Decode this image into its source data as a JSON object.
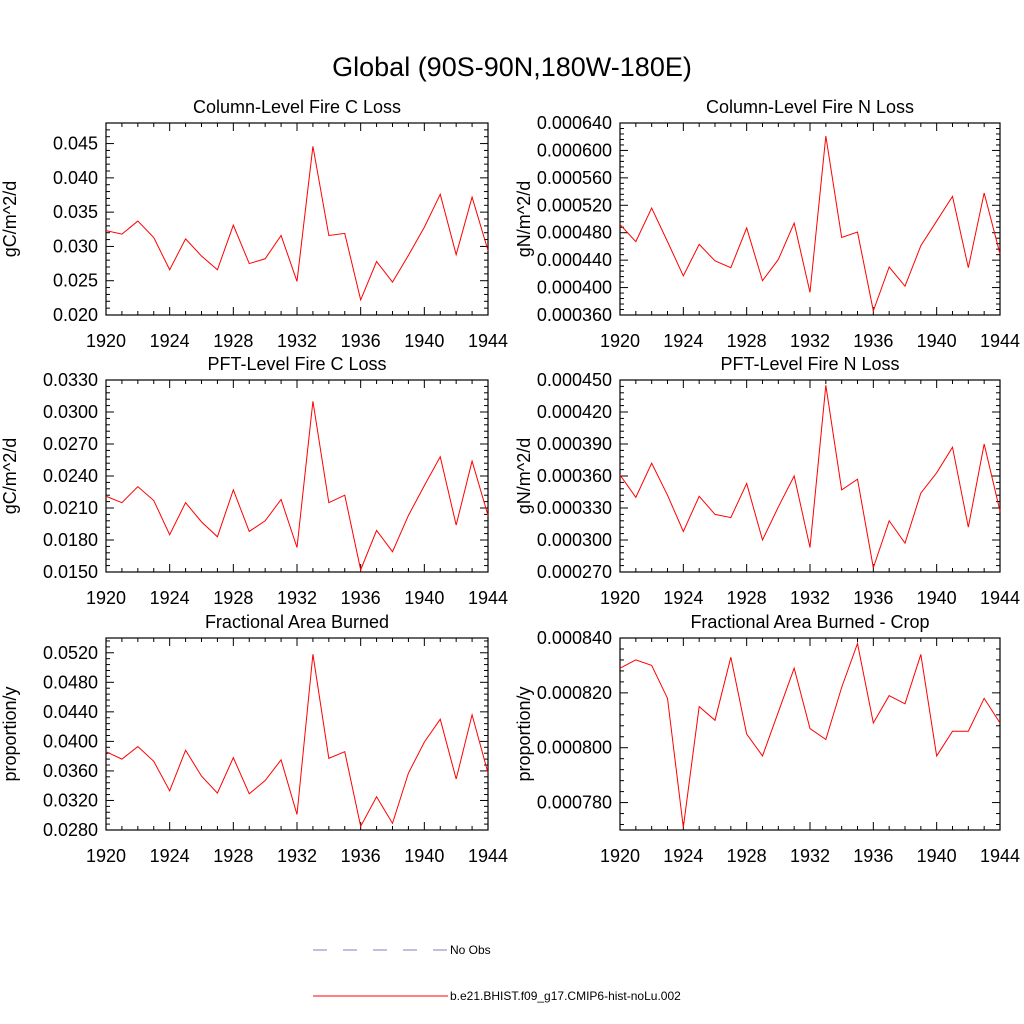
{
  "figure": {
    "title": "Global (90S-90N,180W-180E)",
    "colors": {
      "model": "#ff0000",
      "obs": "#7f7fbf",
      "axis": "#000000"
    }
  },
  "legend": {
    "items": [
      {
        "label": "No Obs",
        "style": "dashed",
        "color": "#7f7fbf"
      },
      {
        "label": "b.e21.BHIST.f09_g17.CMIP6-hist-noLu.002",
        "style": "solid",
        "color": "#ff0000"
      }
    ]
  },
  "chart_data": [
    {
      "type": "line",
      "title": "Column-Level Fire C Loss",
      "ylabel": "gC/m^2/d",
      "xlim": [
        1920,
        1944
      ],
      "ylim": [
        0.02,
        0.048
      ],
      "xticks": [
        "1920",
        "1924",
        "1928",
        "1932",
        "1936",
        "1940",
        "1944"
      ],
      "yticks": [
        "0.020",
        "0.025",
        "0.030",
        "0.035",
        "0.040",
        "0.045"
      ],
      "ytick_values": [
        0.02,
        0.025,
        0.03,
        0.035,
        0.04,
        0.045
      ],
      "x": [
        1920,
        1921,
        1922,
        1923,
        1924,
        1925,
        1926,
        1927,
        1928,
        1929,
        1930,
        1931,
        1932,
        1933,
        1934,
        1935,
        1936,
        1937,
        1938,
        1939,
        1940,
        1941,
        1942,
        1943,
        1944
      ],
      "series": [
        {
          "values": [
            0.0323,
            0.0318,
            0.0337,
            0.0313,
            0.0266,
            0.0311,
            0.0286,
            0.0266,
            0.0331,
            0.0275,
            0.0282,
            0.0316,
            0.0249,
            0.0446,
            0.0316,
            0.0319,
            0.0222,
            0.0278,
            0.0248,
            0.0287,
            0.0328,
            0.0376,
            0.0288,
            0.0372,
            0.0294
          ]
        }
      ]
    },
    {
      "type": "line",
      "title": "Column-Level Fire N Loss",
      "ylabel": "gN/m^2/d",
      "xlim": [
        1920,
        1944
      ],
      "ylim": [
        0.00036,
        0.00064
      ],
      "xticks": [
        "1920",
        "1924",
        "1928",
        "1932",
        "1936",
        "1940",
        "1944"
      ],
      "yticks": [
        "0.000360",
        "0.000400",
        "0.000440",
        "0.000480",
        "0.000520",
        "0.000560",
        "0.000600",
        "0.000640"
      ],
      "ytick_values": [
        0.00036,
        0.0004,
        0.00044,
        0.00048,
        0.00052,
        0.00056,
        0.0006,
        0.00064
      ],
      "x": [
        1920,
        1921,
        1922,
        1923,
        1924,
        1925,
        1926,
        1927,
        1928,
        1929,
        1930,
        1931,
        1932,
        1933,
        1934,
        1935,
        1936,
        1937,
        1938,
        1939,
        1940,
        1941,
        1942,
        1943,
        1944
      ],
      "series": [
        {
          "values": [
            0.000492,
            0.000467,
            0.000516,
            0.000467,
            0.000417,
            0.000463,
            0.000439,
            0.000429,
            0.000487,
            0.00041,
            0.000441,
            0.000494,
            0.000393,
            0.000621,
            0.000473,
            0.000481,
            0.000366,
            0.00043,
            0.000402,
            0.000461,
            0.000497,
            0.000533,
            0.000429,
            0.000538,
            0.000449
          ]
        }
      ]
    },
    {
      "type": "line",
      "title": "PFT-Level Fire C Loss",
      "ylabel": "gC/m^2/d",
      "xlim": [
        1920,
        1944
      ],
      "ylim": [
        0.015,
        0.033
      ],
      "xticks": [
        "1920",
        "1924",
        "1928",
        "1932",
        "1936",
        "1940",
        "1944"
      ],
      "yticks": [
        "0.0150",
        "0.0180",
        "0.0210",
        "0.0240",
        "0.0270",
        "0.0300",
        "0.0330"
      ],
      "ytick_values": [
        0.015,
        0.018,
        0.021,
        0.024,
        0.027,
        0.03,
        0.033
      ],
      "x": [
        1920,
        1921,
        1922,
        1923,
        1924,
        1925,
        1926,
        1927,
        1928,
        1929,
        1930,
        1931,
        1932,
        1933,
        1934,
        1935,
        1936,
        1937,
        1938,
        1939,
        1940,
        1941,
        1942,
        1943,
        1944
      ],
      "series": [
        {
          "values": [
            0.0221,
            0.0215,
            0.023,
            0.0217,
            0.0185,
            0.0215,
            0.0197,
            0.0183,
            0.0227,
            0.0188,
            0.0198,
            0.0218,
            0.0173,
            0.031,
            0.0215,
            0.0222,
            0.0152,
            0.0189,
            0.0169,
            0.0203,
            0.0231,
            0.0258,
            0.0194,
            0.0254,
            0.0203
          ]
        }
      ]
    },
    {
      "type": "line",
      "title": "PFT-Level Fire N Loss",
      "ylabel": "gN/m^2/d",
      "xlim": [
        1920,
        1944
      ],
      "ylim": [
        0.00027,
        0.00045
      ],
      "xticks": [
        "1920",
        "1924",
        "1928",
        "1932",
        "1936",
        "1940",
        "1944"
      ],
      "yticks": [
        "0.000270",
        "0.000300",
        "0.000330",
        "0.000360",
        "0.000390",
        "0.000420",
        "0.000450"
      ],
      "ytick_values": [
        0.00027,
        0.0003,
        0.00033,
        0.00036,
        0.00039,
        0.00042,
        0.00045
      ],
      "x": [
        1920,
        1921,
        1922,
        1923,
        1924,
        1925,
        1926,
        1927,
        1928,
        1929,
        1930,
        1931,
        1932,
        1933,
        1934,
        1935,
        1936,
        1937,
        1938,
        1939,
        1940,
        1941,
        1942,
        1943,
        1944
      ],
      "series": [
        {
          "values": [
            0.000361,
            0.00034,
            0.000372,
            0.000342,
            0.000308,
            0.000341,
            0.000324,
            0.000321,
            0.000353,
            0.0003,
            0.000331,
            0.00036,
            0.000293,
            0.000445,
            0.000347,
            0.000357,
            0.000274,
            0.000318,
            0.000297,
            0.000344,
            0.000363,
            0.000387,
            0.000312,
            0.00039,
            0.000327
          ]
        }
      ]
    },
    {
      "type": "line",
      "title": "Fractional Area Burned",
      "ylabel": "proportion/y",
      "xlim": [
        1920,
        1944
      ],
      "ylim": [
        0.028,
        0.054
      ],
      "xticks": [
        "1920",
        "1924",
        "1928",
        "1932",
        "1936",
        "1940",
        "1944"
      ],
      "yticks": [
        "0.0280",
        "0.0320",
        "0.0360",
        "0.0400",
        "0.0440",
        "0.0480",
        "0.0520"
      ],
      "ytick_values": [
        0.028,
        0.032,
        0.036,
        0.04,
        0.044,
        0.048,
        0.052
      ],
      "x": [
        1920,
        1921,
        1922,
        1923,
        1924,
        1925,
        1926,
        1927,
        1928,
        1929,
        1930,
        1931,
        1932,
        1933,
        1934,
        1935,
        1936,
        1937,
        1938,
        1939,
        1940,
        1941,
        1942,
        1943,
        1944
      ],
      "series": [
        {
          "values": [
            0.0386,
            0.0376,
            0.0393,
            0.0373,
            0.0333,
            0.0388,
            0.0353,
            0.033,
            0.0378,
            0.0329,
            0.0347,
            0.0375,
            0.0301,
            0.0518,
            0.0377,
            0.0386,
            0.0285,
            0.0325,
            0.0289,
            0.0357,
            0.0399,
            0.043,
            0.0349,
            0.0436,
            0.0357
          ]
        }
      ]
    },
    {
      "type": "line",
      "title": "Fractional Area Burned - Crop",
      "ylabel": "proportion/y",
      "xlim": [
        1920,
        1944
      ],
      "ylim": [
        0.00077,
        0.00084
      ],
      "xticks": [
        "1920",
        "1924",
        "1928",
        "1932",
        "1936",
        "1940",
        "1944"
      ],
      "yticks": [
        "0.000780",
        "0.000800",
        "0.000820",
        "0.000840"
      ],
      "ytick_values": [
        0.00078,
        0.0008,
        0.00082,
        0.00084
      ],
      "x": [
        1920,
        1921,
        1922,
        1923,
        1924,
        1925,
        1926,
        1927,
        1928,
        1929,
        1930,
        1931,
        1932,
        1933,
        1934,
        1935,
        1936,
        1937,
        1938,
        1939,
        1940,
        1941,
        1942,
        1943,
        1944
      ],
      "series": [
        {
          "values": [
            0.000829,
            0.000832,
            0.00083,
            0.000818,
            0.000771,
            0.000815,
            0.00081,
            0.000833,
            0.000805,
            0.000797,
            0.000813,
            0.000829,
            0.000807,
            0.000803,
            0.000822,
            0.000838,
            0.000809,
            0.000819,
            0.000816,
            0.000834,
            0.000797,
            0.000806,
            0.000806,
            0.000818,
            0.000809
          ]
        }
      ]
    }
  ]
}
